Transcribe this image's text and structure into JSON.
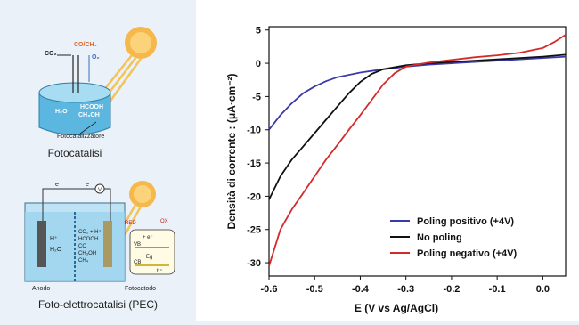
{
  "figure": {
    "top_label": "Fotocatalisi",
    "bottom_label": "Foto-elettrocatalisi (PEC)",
    "top_sublabels": {
      "co2": "CO₂",
      "co_ch4": "CO/CH₄",
      "o2": "O₂",
      "h2o": "H₂O",
      "hcooh": "HCOOH",
      "ch3oh": "CH₃OH",
      "catalyst": "Fotocatalizzatore"
    },
    "bottom_sublabels": {
      "anodo": "Anodo",
      "fotocatodo": "Fotocatodo",
      "red": "RED",
      "ox": "OX",
      "vb": "VB",
      "cb": "CB",
      "products": [
        "CO₂ + H⁺",
        "HCOOH",
        "CO",
        "CH₃OH",
        "CH₄"
      ],
      "h2o": "H₂O",
      "h_plus": "H⁺",
      "e_minus": "e⁻",
      "eg": "Eg",
      "plus_e": "+ e⁻",
      "h_hole": "h⁺",
      "v_meter": "V"
    }
  },
  "chart_data": {
    "type": "line",
    "xlabel": "E (V vs Ag/AgCl)",
    "ylabel": "Densità di corrente   : (μA·cm⁻²)",
    "xlim": [
      -0.6,
      0.05
    ],
    "ylim": [
      -32,
      5.5
    ],
    "xticks": [
      -0.6,
      -0.5,
      -0.4,
      -0.3,
      -0.2,
      -0.1,
      0.0
    ],
    "xtick_labels": [
      "-0.6",
      "-0.5",
      "-0.4",
      "-0.3",
      "-0.2",
      "-0.1",
      "0.0"
    ],
    "yticks": [
      5,
      0,
      -5,
      -10,
      -15,
      -20,
      -25,
      -30
    ],
    "ytick_labels": [
      "5",
      "0",
      "-5",
      "-10",
      "-15",
      "-20",
      "-25",
      "-30"
    ],
    "legend_position": "bottom-right",
    "series": [
      {
        "name": "Poling positivo (+4V)",
        "color": "#3a3aa8",
        "x": [
          -0.6,
          -0.575,
          -0.55,
          -0.525,
          -0.5,
          -0.475,
          -0.45,
          -0.4,
          -0.35,
          -0.3,
          -0.25,
          -0.2,
          -0.15,
          -0.1,
          -0.05,
          0.0,
          0.05
        ],
        "y": [
          -10,
          -7.8,
          -6.0,
          -4.5,
          -3.5,
          -2.7,
          -2.1,
          -1.4,
          -0.9,
          -0.5,
          -0.2,
          0.0,
          0.2,
          0.4,
          0.6,
          0.8,
          1.0
        ]
      },
      {
        "name": "No poling",
        "color": "#111111",
        "x": [
          -0.6,
          -0.575,
          -0.55,
          -0.525,
          -0.5,
          -0.475,
          -0.45,
          -0.425,
          -0.4,
          -0.375,
          -0.35,
          -0.3,
          -0.25,
          -0.2,
          -0.15,
          -0.1,
          -0.05,
          0.0,
          0.05
        ],
        "y": [
          -20.5,
          -17.0,
          -14.5,
          -12.5,
          -10.5,
          -8.5,
          -6.5,
          -4.5,
          -2.8,
          -1.6,
          -0.9,
          -0.3,
          0.0,
          0.2,
          0.4,
          0.6,
          0.8,
          1.0,
          1.3
        ]
      },
      {
        "name": "Poling negativo (+4V)",
        "color": "#d42a2a",
        "x": [
          -0.6,
          -0.575,
          -0.55,
          -0.525,
          -0.5,
          -0.475,
          -0.45,
          -0.425,
          -0.4,
          -0.375,
          -0.35,
          -0.325,
          -0.3,
          -0.25,
          -0.2,
          -0.15,
          -0.1,
          -0.05,
          0.0,
          0.025,
          0.05
        ],
        "y": [
          -30.5,
          -25.0,
          -22.0,
          -19.5,
          -17.0,
          -14.5,
          -12.3,
          -10.0,
          -7.8,
          -5.5,
          -3.2,
          -1.5,
          -0.5,
          0.1,
          0.5,
          0.9,
          1.2,
          1.6,
          2.3,
          3.2,
          4.3
        ]
      }
    ]
  }
}
